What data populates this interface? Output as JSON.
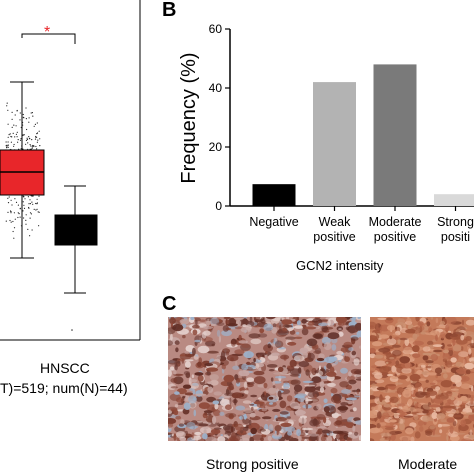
{
  "panelA": {
    "significance_mark": "*",
    "group_label": "HNSCC",
    "counts_text": "T)=519; num(N)=44)"
  },
  "panelB": {
    "letter": "B",
    "chart_data": {
      "type": "bar",
      "categories": [
        "Negative",
        "Weak positive",
        "Moderate positive",
        "Strong positive"
      ],
      "category_lines": [
        [
          "Negative"
        ],
        [
          "Weak",
          "positive"
        ],
        [
          "Moderate",
          "positive"
        ],
        [
          "Strong",
          "positi"
        ]
      ],
      "values": [
        7.4,
        42,
        48,
        4
      ],
      "bar_colors": [
        "#000000",
        "#b3b3b3",
        "#7a7a7a",
        "#d9d9d9"
      ],
      "ylabel": "Frequency (%)",
      "xlabel": "GCN2 intensity",
      "ylim": [
        0,
        60
      ],
      "yticks": [
        0,
        20,
        40,
        60
      ],
      "grid": false
    }
  },
  "panelC": {
    "letter": "C",
    "labels": [
      "Strong positive",
      "Moderate"
    ]
  }
}
